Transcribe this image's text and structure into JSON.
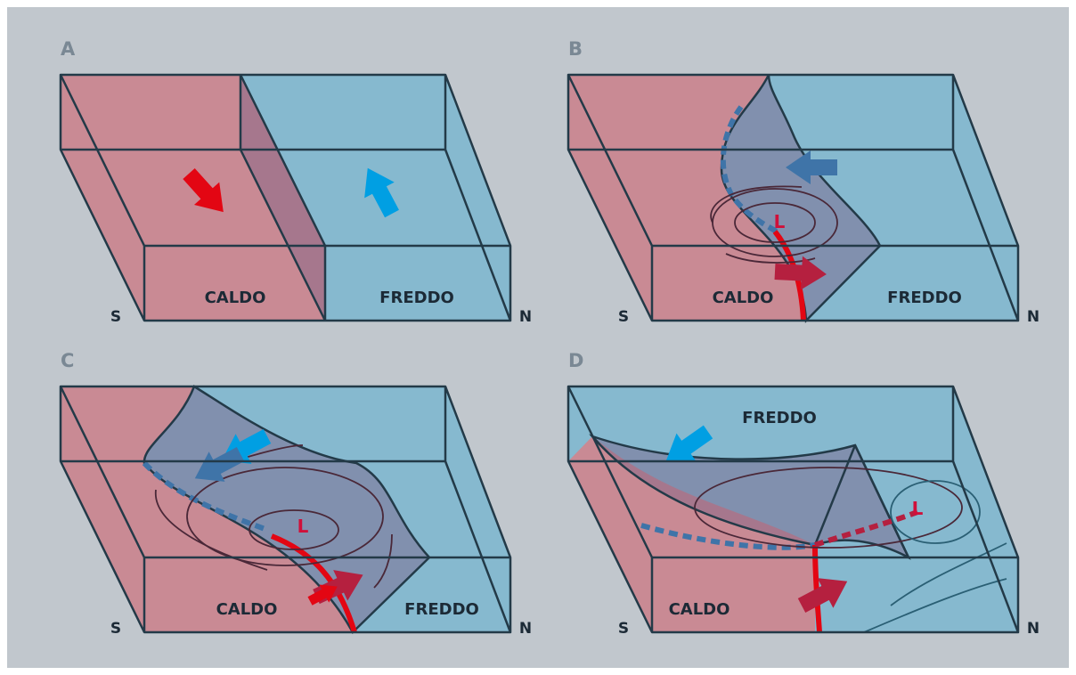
{
  "panels": [
    {
      "label": "A",
      "south": "S",
      "north": "N",
      "warm": "CALDO",
      "cold": "FREDDO"
    },
    {
      "label": "B",
      "south": "S",
      "north": "N",
      "warm": "CALDO",
      "cold": "FREDDO",
      "low": "L"
    },
    {
      "label": "C",
      "south": "S",
      "north": "N",
      "warm": "CALDO",
      "cold": "FREDDO",
      "low": "L"
    },
    {
      "label": "D",
      "south": "S",
      "north": "N",
      "warm": "CALDO",
      "cold": "FREDDO",
      "low": "L"
    }
  ]
}
